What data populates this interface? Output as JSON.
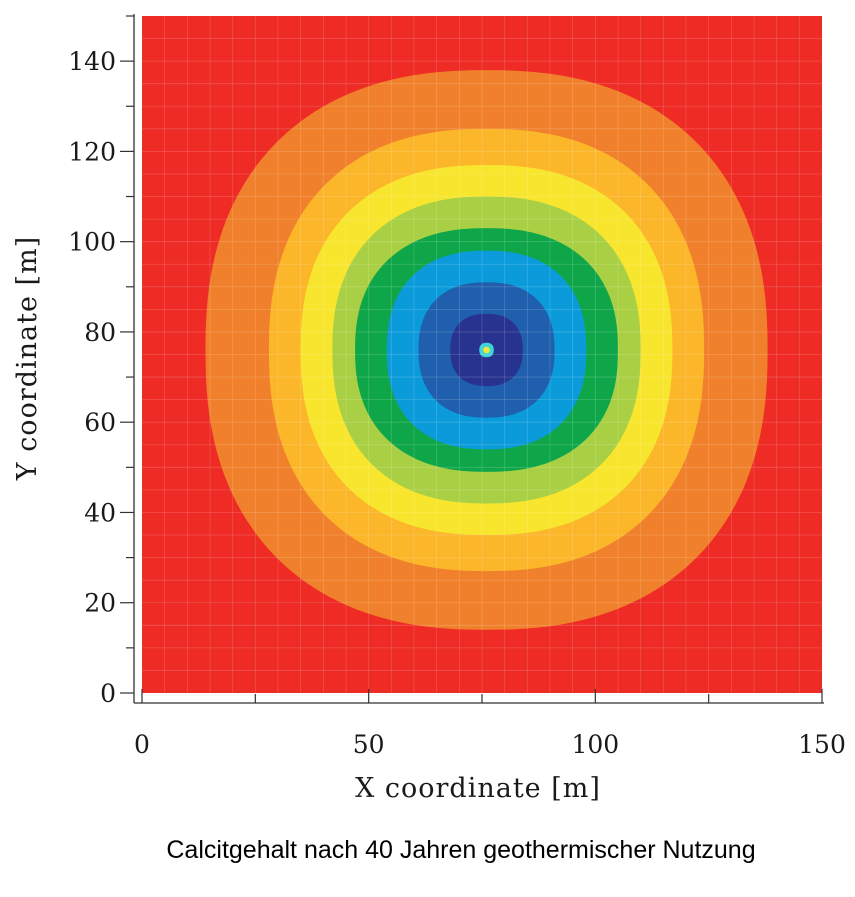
{
  "chart_data": {
    "type": "heatmap",
    "subtype": "filled-contour",
    "title": "",
    "xlabel": "X coordinate [m]",
    "ylabel": "Y coordinate [m]",
    "xlim": [
      0,
      150
    ],
    "ylim": [
      0,
      150
    ],
    "xticks": [
      0,
      50,
      100,
      150
    ],
    "yticks": [
      0,
      20,
      40,
      60,
      80,
      100,
      120,
      140
    ],
    "center": [
      76,
      76
    ],
    "grid": true,
    "legend": "none",
    "contour_levels": [
      {
        "color": "#ee2b25",
        "half_width_x": 62,
        "half_width_y": 62
      },
      {
        "color": "#f0802b",
        "half_width_x": 62,
        "half_width_y": 62
      },
      {
        "color": "#fbb62a",
        "half_width_x": 48,
        "half_width_y": 49
      },
      {
        "color": "#f8e52d",
        "half_width_x": 41,
        "half_width_y": 41
      },
      {
        "color": "#a9d044",
        "half_width_x": 34,
        "half_width_y": 34
      },
      {
        "color": "#0fa64a",
        "half_width_x": 29,
        "half_width_y": 27
      },
      {
        "color": "#0b9bdb",
        "half_width_x": 22,
        "half_width_y": 22
      },
      {
        "color": "#1f5fad",
        "half_width_x": 15,
        "half_width_y": 15
      },
      {
        "color": "#28338f",
        "half_width_x": 8,
        "half_width_y": 8
      },
      {
        "color": "#3ed3d6",
        "half_width_x": 1.6,
        "half_width_y": 1.6
      },
      {
        "color": "#f0e93a",
        "half_width_x": 0.7,
        "half_width_y": 0.7
      }
    ],
    "caption": "Calcitgehalt nach 40 Jahren geothermischer Nutzung"
  }
}
